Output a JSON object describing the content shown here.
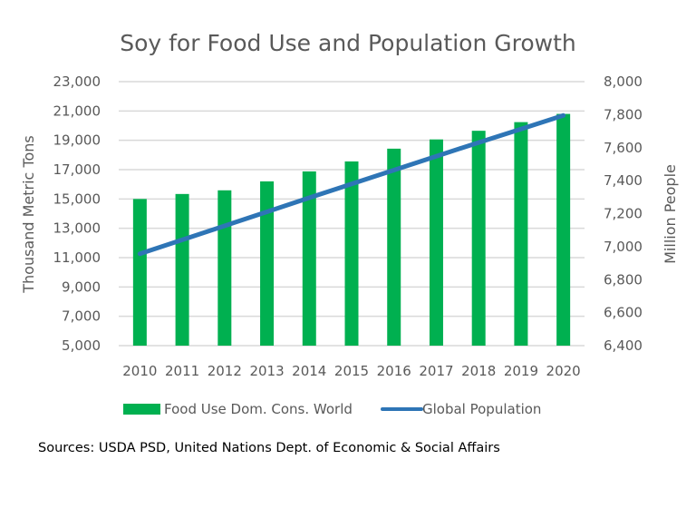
{
  "chart_data": {
    "type": "bar",
    "title": "Soy for Food Use and Population Growth",
    "categories": [
      "2010",
      "2011",
      "2012",
      "2013",
      "2014",
      "2015",
      "2016",
      "2017",
      "2018",
      "2019",
      "2020"
    ],
    "series": [
      {
        "name": "Food Use Dom. Cons. World",
        "type": "bar",
        "axis": "left",
        "color": "#00b050",
        "values": [
          15000,
          15340,
          15590,
          16200,
          16880,
          17560,
          18430,
          19060,
          19650,
          20240,
          20800
        ]
      },
      {
        "name": "Global Population",
        "type": "line",
        "axis": "right",
        "color": "#2e75b6",
        "values": [
          6957,
          7041,
          7126,
          7211,
          7296,
          7380,
          7464,
          7548,
          7631,
          7713,
          7795
        ]
      }
    ],
    "ylabel": "Thousand Metric Tons",
    "ylim": [
      5000,
      23000
    ],
    "yticks": [
      "5,000",
      "7,000",
      "9,000",
      "11,000",
      "13,000",
      "15,000",
      "17,000",
      "19,000",
      "21,000",
      "23,000"
    ],
    "y2label": "Million People",
    "y2lim": [
      6400,
      8000
    ],
    "y2ticks": [
      "6,400",
      "6,600",
      "6,800",
      "7,000",
      "7,200",
      "7,400",
      "7,600",
      "7,800",
      "8,000"
    ],
    "grid": true,
    "legend": "bottom",
    "legend_items": [
      "Food Use Dom. Cons. World",
      "Global Population"
    ],
    "source_note": "Sources: USDA PSD, United Nations Dept. of Economic & Social Affairs"
  }
}
